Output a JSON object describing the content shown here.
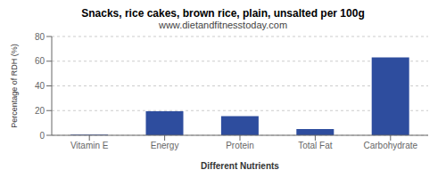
{
  "chart_data": {
    "type": "bar",
    "title": "Snacks, rice cakes, brown rice, plain, unsalted per 100g",
    "subtitle": "www.dietandfitnesstoday.com",
    "xlabel": "Different Nutrients",
    "ylabel": "Percentage of RDH (%)",
    "categories": [
      "Vitamin E",
      "Energy",
      "Protein",
      "Total Fat",
      "Carbohydrate"
    ],
    "values": [
      0.5,
      19.5,
      15.5,
      5.0,
      63.0
    ],
    "color": "#2e4d9e",
    "ylim": [
      0,
      80
    ],
    "yticks": [
      0,
      20,
      40,
      60,
      80
    ],
    "grid": true
  }
}
